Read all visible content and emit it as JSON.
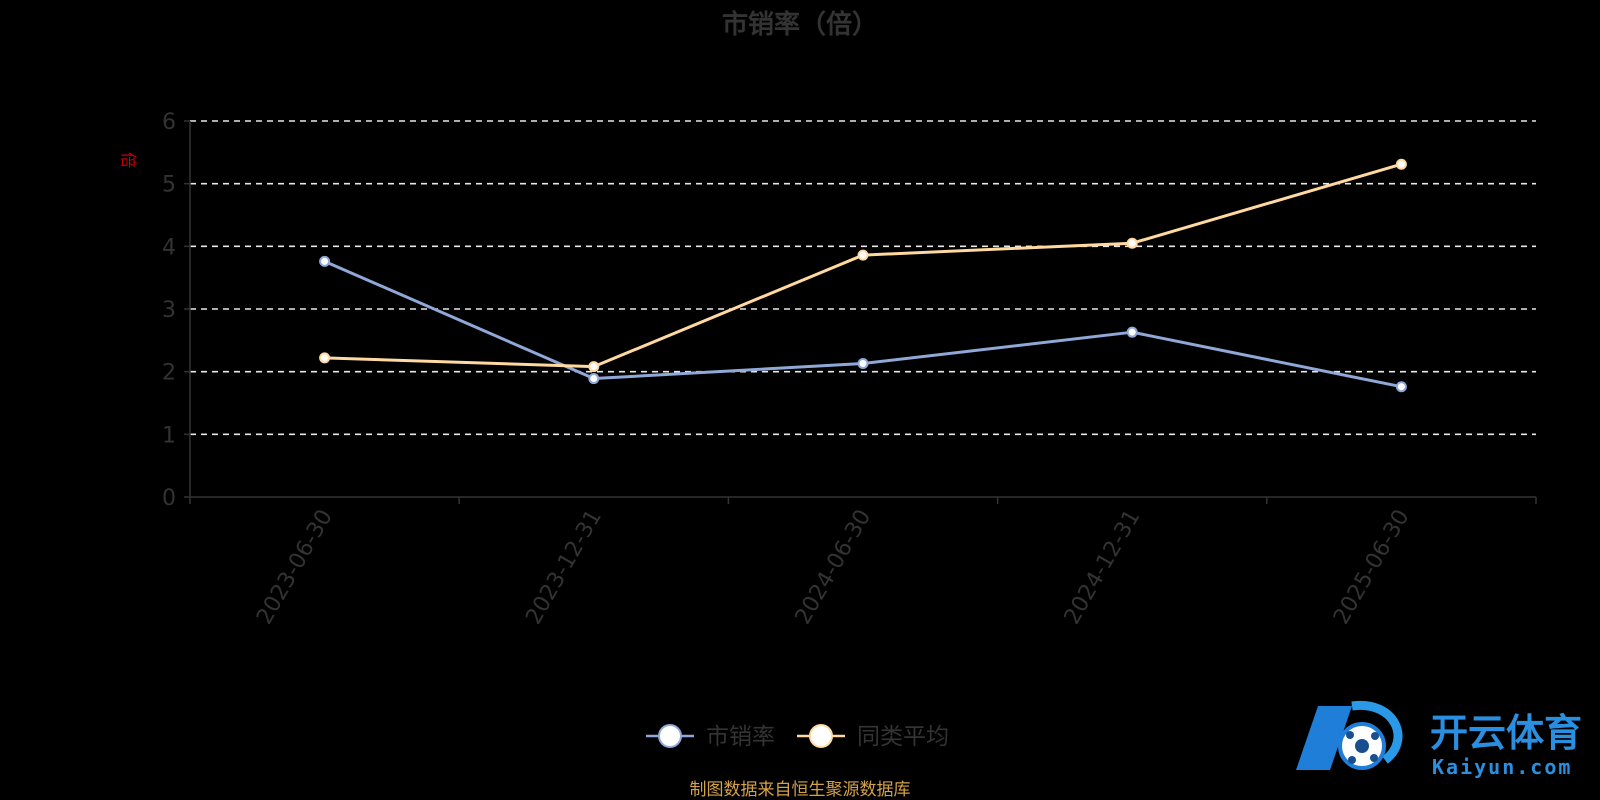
{
  "chart_data": {
    "type": "line",
    "title": "市销率（倍）",
    "ylabel": "倍",
    "ylim": [
      0,
      6
    ],
    "yticks": [
      0,
      1,
      2,
      3,
      4,
      5,
      6
    ],
    "grid": true,
    "legend_position": "bottom",
    "categories": [
      "2023-06-30",
      "2023-12-31",
      "2024-06-30",
      "2024-12-31",
      "2025-06-30"
    ],
    "series": [
      {
        "name": "市销率",
        "color": "#8fa8d8",
        "values": [
          3.76,
          1.89,
          2.13,
          2.63,
          1.76
        ]
      },
      {
        "name": "同类平均",
        "color": "#ffd9a0",
        "values": [
          2.22,
          2.08,
          3.86,
          4.05,
          5.31
        ]
      }
    ]
  },
  "footer": {
    "text": "制图数据来自恒生聚源数据库",
    "color": "#d4a24a"
  },
  "unit_color": "#cc0000",
  "watermark": {
    "cn": "开云体育",
    "en": "Kaiyun.com",
    "color": "#2a8fe0"
  }
}
